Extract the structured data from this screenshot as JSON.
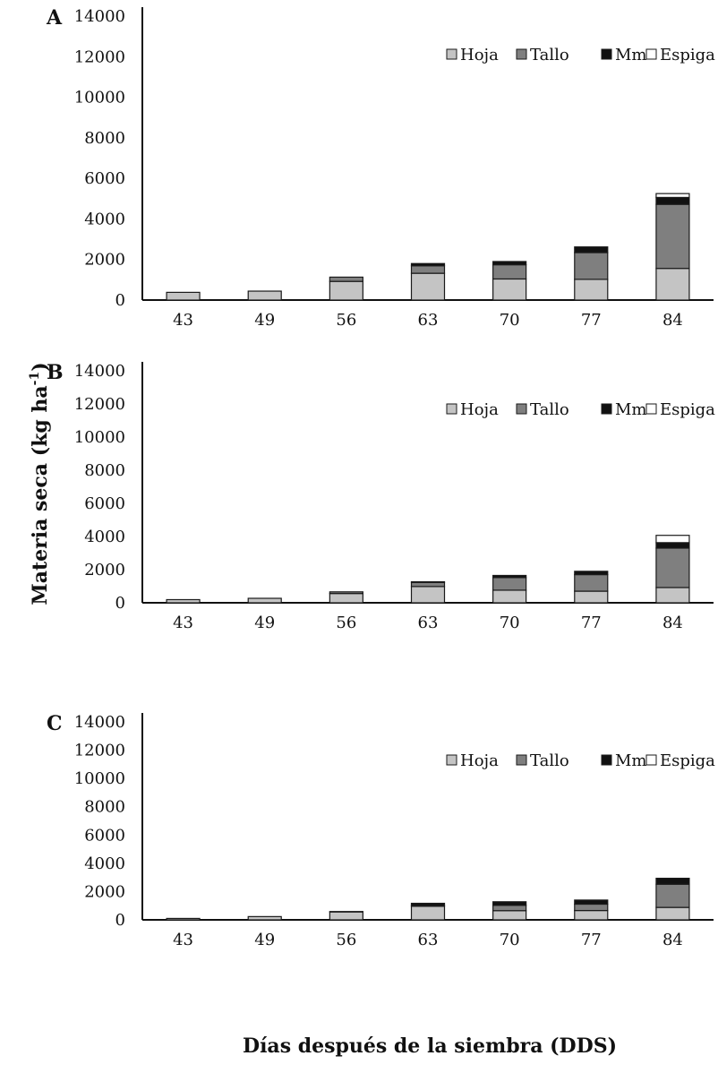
{
  "figure": {
    "ylabel": "Materia seca (kg ha",
    "ylabel_sup": "-1",
    "ylabel_close": ")",
    "xlabel": "Días después de la siembra (DDS)"
  },
  "colors": {
    "Hoja": "#c4c4c4",
    "Tallo": "#7f7f7f",
    "Mm": "#111111",
    "Espiga": "#ffffff",
    "stroke": "#1a1a1a"
  },
  "chart_data": [
    {
      "type": "bar",
      "stacked": true,
      "panel": "A",
      "categories": [
        "43",
        "49",
        "56",
        "63",
        "70",
        "77",
        "84"
      ],
      "ylim": [
        0,
        14000
      ],
      "yticks": [
        0,
        2000,
        4000,
        6000,
        8000,
        10000,
        12000,
        14000
      ],
      "legend": "top-right",
      "grid": false,
      "series": [
        {
          "name": "Hoja",
          "values": [
            380,
            440,
            920,
            1320,
            1040,
            1020,
            1560
          ]
        },
        {
          "name": "Tallo",
          "values": [
            0,
            0,
            210,
            370,
            700,
            1320,
            3160
          ]
        },
        {
          "name": "Mm",
          "values": [
            0,
            0,
            0,
            110,
            160,
            280,
            340
          ]
        },
        {
          "name": "Espiga",
          "values": [
            0,
            0,
            0,
            0,
            0,
            0,
            190
          ]
        }
      ]
    },
    {
      "type": "bar",
      "stacked": true,
      "panel": "B",
      "categories": [
        "43",
        "49",
        "56",
        "63",
        "70",
        "77",
        "84"
      ],
      "ylim": [
        0,
        14000
      ],
      "yticks": [
        0,
        2000,
        4000,
        6000,
        8000,
        10000,
        12000,
        14000
      ],
      "legend": "top-right",
      "grid": false,
      "series": [
        {
          "name": "Hoja",
          "values": [
            190,
            270,
            560,
            980,
            760,
            700,
            920
          ]
        },
        {
          "name": "Tallo",
          "values": [
            0,
            0,
            100,
            250,
            760,
            1000,
            2380
          ]
        },
        {
          "name": "Mm",
          "values": [
            0,
            0,
            0,
            40,
            130,
            200,
            330
          ]
        },
        {
          "name": "Espiga",
          "values": [
            0,
            0,
            0,
            0,
            0,
            0,
            440
          ]
        }
      ]
    },
    {
      "type": "bar",
      "stacked": true,
      "panel": "C",
      "categories": [
        "43",
        "49",
        "56",
        "63",
        "70",
        "77",
        "84"
      ],
      "ylim": [
        0,
        14000
      ],
      "yticks": [
        0,
        2000,
        4000,
        6000,
        8000,
        10000,
        12000,
        14000
      ],
      "legend": "top-right",
      "grid": false,
      "series": [
        {
          "name": "Hoja",
          "values": [
            100,
            230,
            560,
            960,
            650,
            660,
            880
          ]
        },
        {
          "name": "Tallo",
          "values": [
            0,
            0,
            30,
            60,
            380,
            450,
            1640
          ]
        },
        {
          "name": "Mm",
          "values": [
            0,
            0,
            0,
            150,
            250,
            290,
            420
          ]
        },
        {
          "name": "Espiga",
          "values": [
            0,
            0,
            0,
            0,
            0,
            0,
            0
          ]
        }
      ]
    }
  ]
}
